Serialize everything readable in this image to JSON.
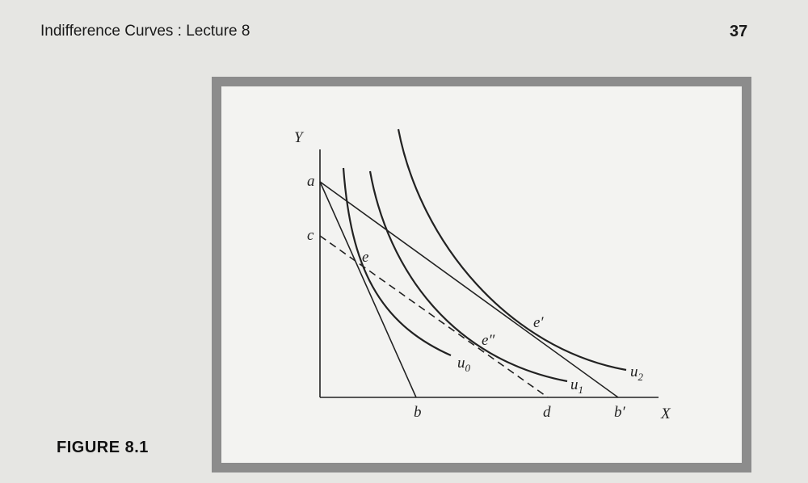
{
  "header": {
    "title": "Indifference Curves : Lecture 8",
    "page": "37"
  },
  "figure": {
    "caption": "FIGURE 8.1",
    "axes": {
      "y": "Y",
      "x": "X"
    },
    "points": {
      "a": "a",
      "c": "c",
      "e": "e",
      "e_prime": "e′",
      "e_double_prime": "e″",
      "b": "b",
      "d": "d",
      "b_prime": "b′"
    },
    "curves": [
      {
        "label": "u",
        "subscript": "0"
      },
      {
        "label": "u",
        "subscript": "1"
      },
      {
        "label": "u",
        "subscript": "2"
      }
    ]
  }
}
